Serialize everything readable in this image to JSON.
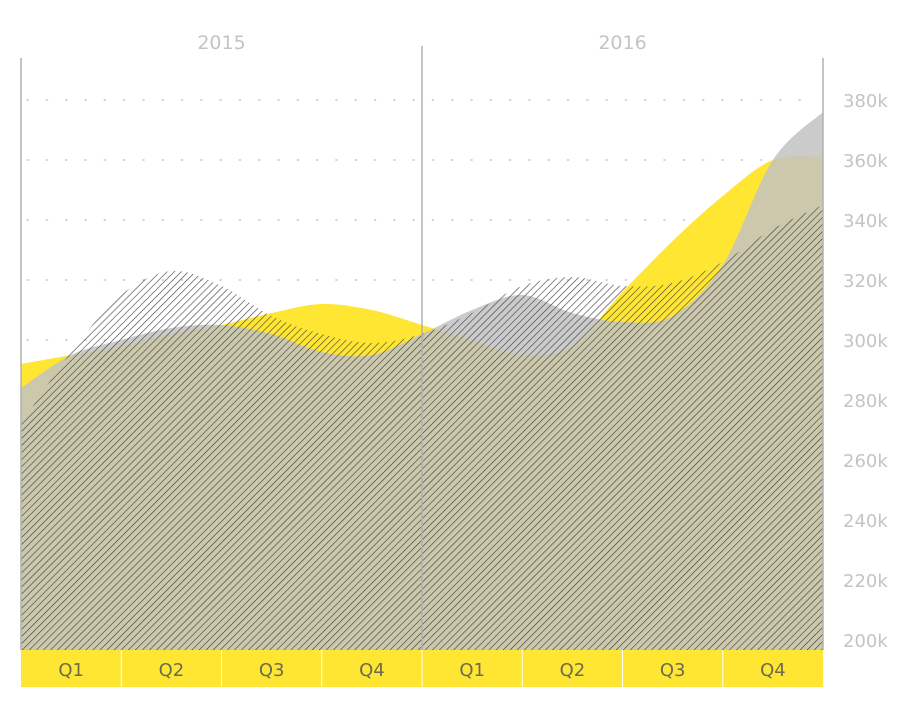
{
  "colors": {
    "yellow": "#ffe633",
    "gray": "#c2c2c2",
    "hatch": "#3a3a3a",
    "text_light": "#c4c4c4",
    "divider": "#b0b0b0"
  },
  "chart_data": {
    "type": "area",
    "years": [
      "2015",
      "2016"
    ],
    "categories": [
      "Q1",
      "Q2",
      "Q3",
      "Q4",
      "Q1",
      "Q2",
      "Q3",
      "Q4"
    ],
    "y_ticks": [
      "200k",
      "220k",
      "240k",
      "260k",
      "280k",
      "300k",
      "320k",
      "340k",
      "360k",
      "380k"
    ],
    "ylim": [
      200000,
      380000
    ],
    "grid": "dotted horizontal",
    "series": [
      {
        "style": "yellow-fill",
        "x": [
          0,
          0.5,
          1,
          1.5,
          2,
          2.5,
          3,
          3.5,
          4,
          4.5,
          5,
          5.5,
          6,
          6.5,
          7,
          7.5,
          8
        ],
        "values": [
          292000,
          295000,
          298000,
          302000,
          305000,
          309000,
          312000,
          310000,
          305000,
          300000,
          295000,
          298000,
          316000,
          333000,
          348000,
          360000,
          361000
        ]
      },
      {
        "style": "gray-fill",
        "x": [
          0,
          0.5,
          1,
          1.5,
          2,
          2.5,
          3,
          3.5,
          4,
          4.5,
          5,
          5.5,
          6,
          6.5,
          7,
          7.5,
          8
        ],
        "values": [
          284000,
          295000,
          300000,
          304000,
          305000,
          302000,
          296000,
          295000,
          302000,
          310000,
          315000,
          309000,
          306000,
          308000,
          325000,
          360000,
          376000
        ]
      },
      {
        "style": "hatched",
        "x": [
          0,
          0.5,
          1,
          1.5,
          2,
          2.5,
          3,
          3.5,
          4,
          4.5,
          5,
          5.5,
          6,
          6.5,
          7,
          7.5,
          8
        ],
        "values": [
          272000,
          296000,
          315000,
          323000,
          318000,
          308000,
          302000,
          299000,
          302000,
          309000,
          318000,
          321000,
          318000,
          319000,
          326000,
          337000,
          345000
        ]
      }
    ]
  }
}
